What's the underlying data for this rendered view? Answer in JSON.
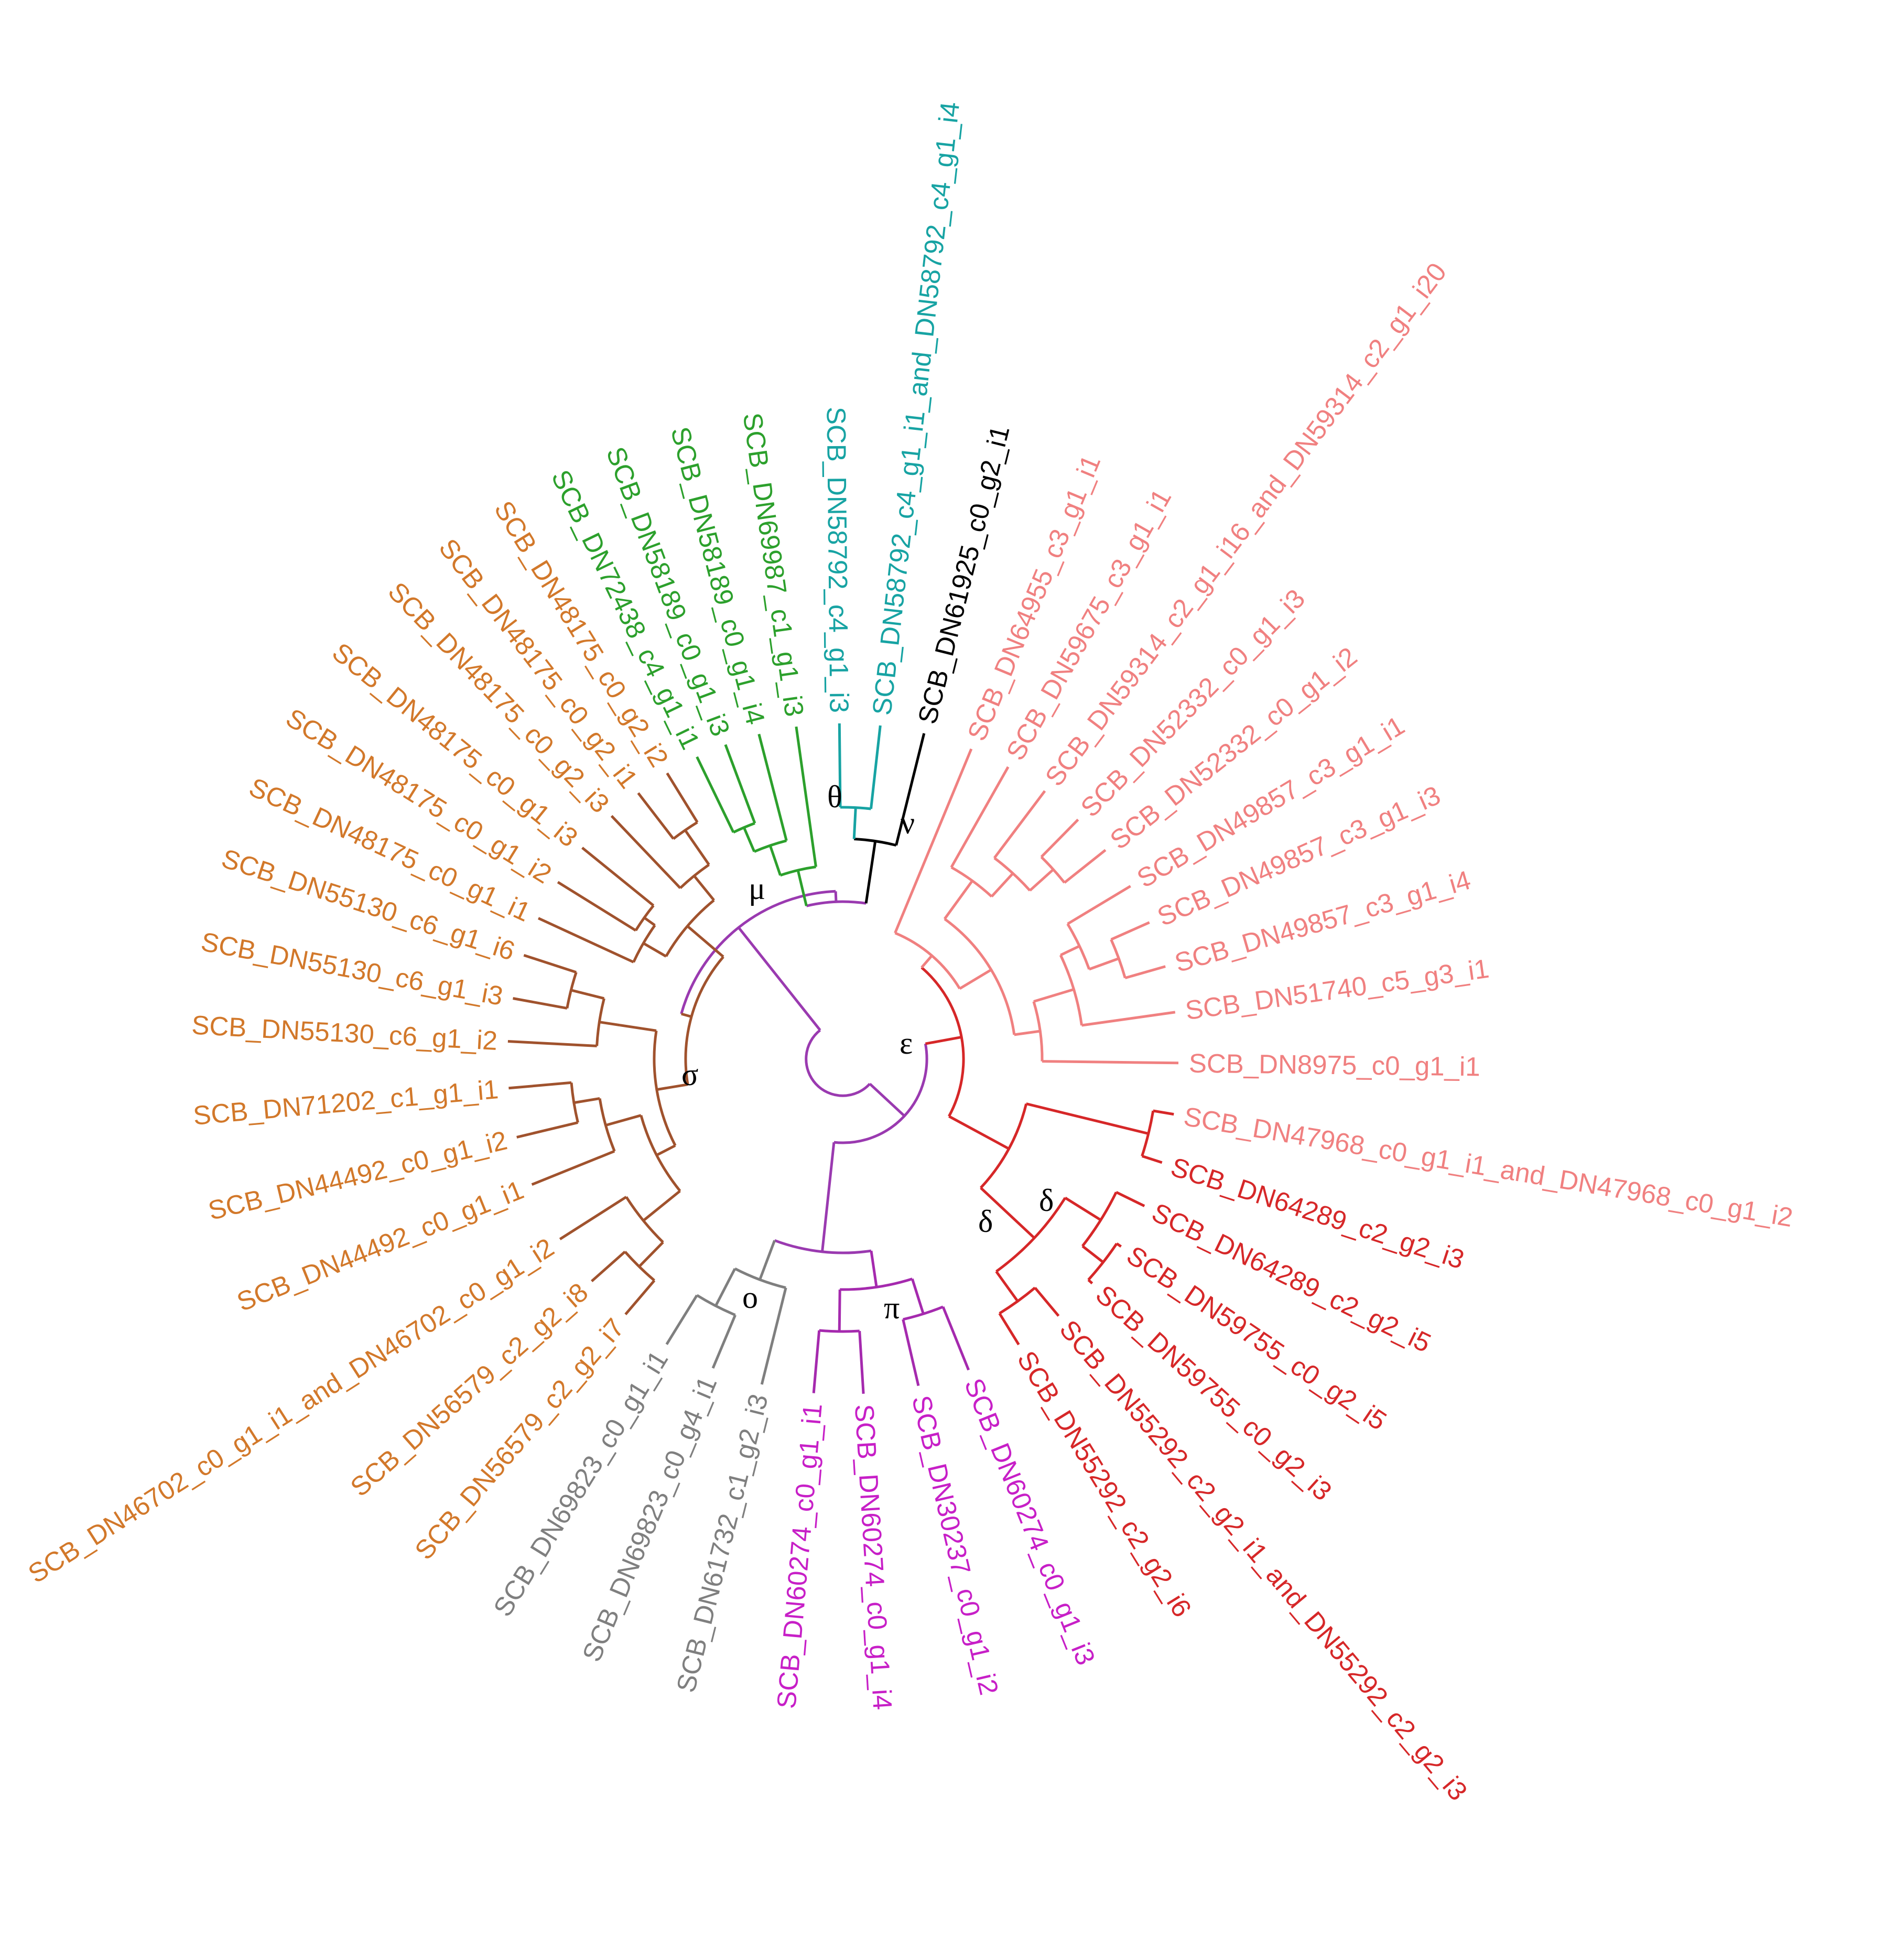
{
  "colors": {
    "sigma": "#D2782A",
    "sigma_branch": "#A0522D",
    "mu": "#2CA02C",
    "theta": "#17A3A3",
    "nu": "#000000",
    "epsilon": "#F08080",
    "delta": "#D62728",
    "pi": "#C71FC7",
    "pi_branch": "#A52AAE",
    "omicron": "#7F7F7F",
    "backbone": "#9A3AB0"
  },
  "clade_labels": {
    "mu": "μ",
    "theta": "θ",
    "nu": "ν",
    "sigma": "σ",
    "epsilon": "ε",
    "delta_outer": "δ",
    "delta_inner": "δ",
    "omicron": "ο",
    "pi": "π"
  },
  "leaves": [
    {
      "clade": "sigma",
      "label": "SCB_DN48175_c0_g2_i2"
    },
    {
      "clade": "sigma",
      "label": "SCB_DN48175_c0_g2_i1"
    },
    {
      "clade": "sigma",
      "label": "SCB_DN48175_c0_g2_i3"
    },
    {
      "clade": "sigma",
      "label": "SCB_DN48175_c0_g1_i3"
    },
    {
      "clade": "sigma",
      "label": "SCB_DN48175_c0_g1_i2"
    },
    {
      "clade": "sigma",
      "label": "SCB_DN48175_c0_g1_i1"
    },
    {
      "clade": "sigma",
      "label": "SCB_DN55130_c6_g1_i6"
    },
    {
      "clade": "sigma",
      "label": "SCB_DN55130_c6_g1_i3"
    },
    {
      "clade": "sigma",
      "label": "SCB_DN55130_c6_g1_i2"
    },
    {
      "clade": "sigma",
      "label": "SCB_DN71202_c1_g1_i1"
    },
    {
      "clade": "sigma",
      "label": "SCB_DN44492_c0_g1_i2"
    },
    {
      "clade": "sigma",
      "label": "SCB_DN44492_c0_g1_i1"
    },
    {
      "clade": "sigma",
      "label": "SCB_DN46702_c0_g1_i1_and_DN46702_c0_g1_i2"
    },
    {
      "clade": "sigma",
      "label": "SCB_DN56579_c2_g2_i8"
    },
    {
      "clade": "sigma",
      "label": "SCB_DN56579_c2_g2_i7"
    },
    {
      "clade": "omicron",
      "label": "SCB_DN69823_c0_g1_i1"
    },
    {
      "clade": "omicron",
      "label": "SCB_DN69823_c0_g4_i1"
    },
    {
      "clade": "omicron",
      "label": "SCB_DN61732_c1_g2_i3"
    },
    {
      "clade": "pi",
      "label": "SCB_DN60274_c0_g1_i1"
    },
    {
      "clade": "pi",
      "label": "SCB_DN60274_c0_g1_i4"
    },
    {
      "clade": "pi",
      "label": "SCB_DN30237_c0_g1_i2"
    },
    {
      "clade": "pi",
      "label": "SCB_DN60274_c0_g1_i3"
    },
    {
      "clade": "delta",
      "label": "SCB_DN55292_c2_g2_i6"
    },
    {
      "clade": "delta",
      "label": "SCB_DN55292_c2_g2_i1_and_DN55292_c2_g2_i3"
    },
    {
      "clade": "delta",
      "label": "SCB_DN59755_c0_g2_i3"
    },
    {
      "clade": "delta",
      "label": "SCB_DN59755_c0_g2_i5"
    },
    {
      "clade": "delta",
      "label": "SCB_DN64289_c2_g2_i5"
    },
    {
      "clade": "delta",
      "label": "SCB_DN64289_c2_g2_i3"
    },
    {
      "clade": "epsilon",
      "label": "SCB_DN47968_c0_g1_i1_and_DN47968_c0_g1_i2"
    },
    {
      "clade": "epsilon",
      "label": "SCB_DN8975_c0_g1_i1"
    },
    {
      "clade": "epsilon",
      "label": "SCB_DN51740_c5_g3_i1"
    },
    {
      "clade": "epsilon",
      "label": "SCB_DN49857_c3_g1_i4"
    },
    {
      "clade": "epsilon",
      "label": "SCB_DN49857_c3_g1_i3"
    },
    {
      "clade": "epsilon",
      "label": "SCB_DN49857_c3_g1_i1"
    },
    {
      "clade": "epsilon",
      "label": "SCB_DN52332_c0_g1_i2"
    },
    {
      "clade": "epsilon",
      "label": "SCB_DN52332_c0_g1_i3"
    },
    {
      "clade": "epsilon",
      "label": "SCB_DN59314_c2_g1_i16_and_DN59314_c2_g1_i20"
    },
    {
      "clade": "epsilon",
      "label": "SCB_DN59675_c3_g1_i1"
    },
    {
      "clade": "epsilon",
      "label": "SCB_DN64955_c3_g1_i1"
    },
    {
      "clade": "nu",
      "label": "SCB_DN61925_c0_g2_i1"
    },
    {
      "clade": "theta",
      "label": "SCB_DN58792_c4_g1_i1_and_DN58792_c4_g1_i4"
    },
    {
      "clade": "theta",
      "label": "SCB_DN58792_c4_g1_i3"
    },
    {
      "clade": "mu",
      "label": "SCB_DN69987_c1_g1_i3"
    },
    {
      "clade": "mu",
      "label": "SCB_DN58189_c0_g1_i4"
    },
    {
      "clade": "mu",
      "label": "SCB_DN58189_c0_g1_i3"
    },
    {
      "clade": "mu",
      "label": "SCB_DN72438_c4_g1_i1"
    }
  ]
}
